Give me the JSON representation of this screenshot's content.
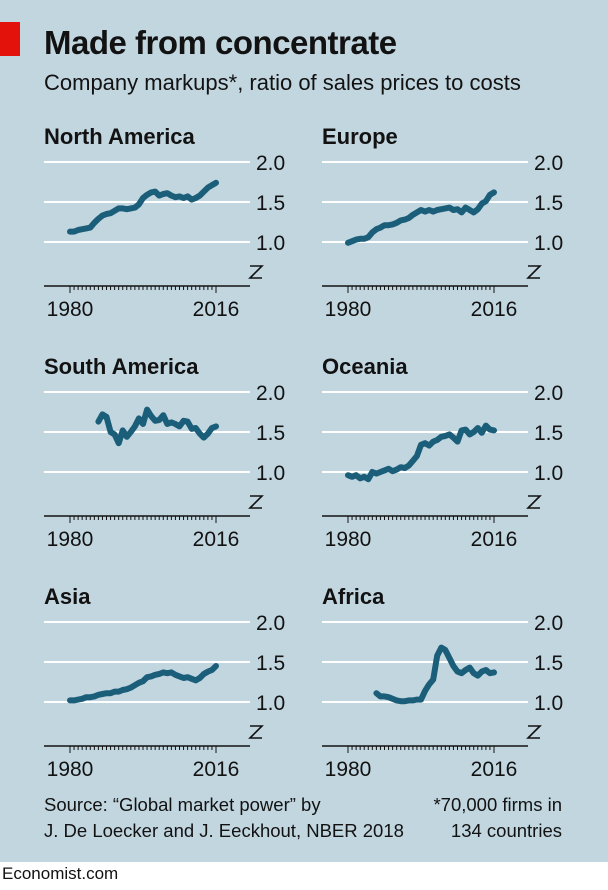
{
  "header": {
    "title": "Made from concentrate",
    "subtitle": "Company markups*, ratio of sales prices to costs"
  },
  "footer": {
    "source_line1": "Source: “Global market power” by",
    "source_line2": "J. De Loecker and J. Eeckhout, NBER 2018",
    "note_line1": "*70,000 firms in",
    "note_line2": "134 countries",
    "brand": "Economist.com"
  },
  "colors": {
    "background": "#c2d6e0",
    "line": "#1b5e7a",
    "gridline": "#ffffff",
    "accent": "#e3120b"
  },
  "chart_data": [
    {
      "type": "line",
      "title": "North America",
      "xlim": [
        1980,
        2016
      ],
      "ylim": [
        1.0,
        2.0
      ],
      "yticks": [
        1.0,
        1.5,
        2.0
      ],
      "ytick_labels": [
        "1.0",
        "1.5",
        "2.0"
      ],
      "xtick_labels": [
        "1980",
        "2016"
      ],
      "axis_break": true,
      "x": [
        1980,
        1981,
        1982,
        1983,
        1984,
        1985,
        1986,
        1987,
        1988,
        1989,
        1990,
        1991,
        1992,
        1993,
        1994,
        1995,
        1996,
        1997,
        1998,
        1999,
        2000,
        2001,
        2002,
        2003,
        2004,
        2005,
        2006,
        2007,
        2008,
        2009,
        2010,
        2011,
        2012,
        2013,
        2014,
        2015,
        2016
      ],
      "y": [
        1.13,
        1.13,
        1.15,
        1.16,
        1.17,
        1.18,
        1.24,
        1.29,
        1.33,
        1.35,
        1.36,
        1.39,
        1.42,
        1.42,
        1.41,
        1.42,
        1.43,
        1.47,
        1.55,
        1.59,
        1.62,
        1.63,
        1.58,
        1.6,
        1.61,
        1.58,
        1.56,
        1.57,
        1.55,
        1.57,
        1.53,
        1.55,
        1.58,
        1.63,
        1.68,
        1.71,
        1.74
      ]
    },
    {
      "type": "line",
      "title": "Europe",
      "xlim": [
        1980,
        2016
      ],
      "ylim": [
        1.0,
        2.0
      ],
      "yticks": [
        1.0,
        1.5,
        2.0
      ],
      "ytick_labels": [
        "1.0",
        "1.5",
        "2.0"
      ],
      "xtick_labels": [
        "1980",
        "2016"
      ],
      "axis_break": true,
      "x": [
        1980,
        1981,
        1982,
        1983,
        1984,
        1985,
        1986,
        1987,
        1988,
        1989,
        1990,
        1991,
        1992,
        1993,
        1994,
        1995,
        1996,
        1997,
        1998,
        1999,
        2000,
        2001,
        2002,
        2003,
        2004,
        2005,
        2006,
        2007,
        2008,
        2009,
        2010,
        2011,
        2012,
        2013,
        2014,
        2015,
        2016
      ],
      "y": [
        0.99,
        1.01,
        1.03,
        1.04,
        1.04,
        1.06,
        1.12,
        1.16,
        1.18,
        1.21,
        1.21,
        1.22,
        1.24,
        1.27,
        1.28,
        1.3,
        1.34,
        1.37,
        1.4,
        1.38,
        1.4,
        1.38,
        1.4,
        1.41,
        1.42,
        1.43,
        1.4,
        1.41,
        1.37,
        1.43,
        1.4,
        1.37,
        1.41,
        1.48,
        1.51,
        1.59,
        1.62
      ]
    },
    {
      "type": "line",
      "title": "South America",
      "xlim": [
        1980,
        2016
      ],
      "ylim": [
        1.0,
        2.0
      ],
      "yticks": [
        1.0,
        1.5,
        2.0
      ],
      "ytick_labels": [
        "1.0",
        "1.5",
        "2.0"
      ],
      "xtick_labels": [
        "1980",
        "2016"
      ],
      "axis_break": true,
      "x": [
        1987,
        1988,
        1989,
        1990,
        1991,
        1992,
        1993,
        1994,
        1995,
        1996,
        1997,
        1998,
        1999,
        2000,
        2001,
        2002,
        2003,
        2004,
        2005,
        2006,
        2007,
        2008,
        2009,
        2010,
        2011,
        2012,
        2013,
        2014,
        2015,
        2016
      ],
      "y": [
        1.63,
        1.72,
        1.69,
        1.5,
        1.47,
        1.36,
        1.52,
        1.44,
        1.5,
        1.57,
        1.67,
        1.6,
        1.78,
        1.7,
        1.64,
        1.65,
        1.71,
        1.6,
        1.62,
        1.6,
        1.57,
        1.64,
        1.63,
        1.54,
        1.55,
        1.48,
        1.43,
        1.48,
        1.55,
        1.57
      ]
    },
    {
      "type": "line",
      "title": "Oceania",
      "xlim": [
        1980,
        2016
      ],
      "ylim": [
        1.0,
        2.0
      ],
      "yticks": [
        1.0,
        1.5,
        2.0
      ],
      "ytick_labels": [
        "1.0",
        "1.5",
        "2.0"
      ],
      "xtick_labels": [
        "1980",
        "2016"
      ],
      "axis_break": true,
      "x": [
        1980,
        1981,
        1982,
        1983,
        1984,
        1985,
        1986,
        1987,
        1988,
        1989,
        1990,
        1991,
        1992,
        1993,
        1994,
        1995,
        1996,
        1997,
        1998,
        1999,
        2000,
        2001,
        2002,
        2003,
        2004,
        2005,
        2006,
        2007,
        2008,
        2009,
        2010,
        2011,
        2012,
        2013,
        2014,
        2015,
        2016
      ],
      "y": [
        0.96,
        0.94,
        0.96,
        0.92,
        0.94,
        0.91,
        1.0,
        0.98,
        1.0,
        1.02,
        1.04,
        1.01,
        1.03,
        1.06,
        1.05,
        1.08,
        1.14,
        1.2,
        1.34,
        1.36,
        1.33,
        1.38,
        1.4,
        1.44,
        1.45,
        1.47,
        1.43,
        1.38,
        1.52,
        1.53,
        1.47,
        1.5,
        1.55,
        1.49,
        1.58,
        1.53,
        1.52
      ]
    },
    {
      "type": "line",
      "title": "Asia",
      "xlim": [
        1980,
        2016
      ],
      "ylim": [
        1.0,
        2.0
      ],
      "yticks": [
        1.0,
        1.5,
        2.0
      ],
      "ytick_labels": [
        "1.0",
        "1.5",
        "2.0"
      ],
      "xtick_labels": [
        "1980",
        "2016"
      ],
      "axis_break": true,
      "x": [
        1980,
        1981,
        1982,
        1983,
        1984,
        1985,
        1986,
        1987,
        1988,
        1989,
        1990,
        1991,
        1992,
        1993,
        1994,
        1995,
        1996,
        1997,
        1998,
        1999,
        2000,
        2001,
        2002,
        2003,
        2004,
        2005,
        2006,
        2007,
        2008,
        2009,
        2010,
        2011,
        2012,
        2013,
        2014,
        2015,
        2016
      ],
      "y": [
        1.02,
        1.02,
        1.03,
        1.04,
        1.06,
        1.06,
        1.07,
        1.09,
        1.1,
        1.11,
        1.11,
        1.13,
        1.13,
        1.15,
        1.16,
        1.18,
        1.21,
        1.24,
        1.26,
        1.31,
        1.32,
        1.34,
        1.35,
        1.37,
        1.36,
        1.37,
        1.34,
        1.32,
        1.3,
        1.31,
        1.29,
        1.27,
        1.3,
        1.35,
        1.38,
        1.4,
        1.45
      ]
    },
    {
      "type": "line",
      "title": "Africa",
      "xlim": [
        1980,
        2016
      ],
      "ylim": [
        1.0,
        2.0
      ],
      "yticks": [
        1.0,
        1.5,
        2.0
      ],
      "ytick_labels": [
        "1.0",
        "1.5",
        "2.0"
      ],
      "xtick_labels": [
        "1980",
        "2016"
      ],
      "axis_break": true,
      "x": [
        1987,
        1988,
        1989,
        1990,
        1991,
        1992,
        1993,
        1994,
        1995,
        1996,
        1997,
        1998,
        1999,
        2000,
        2001,
        2002,
        2003,
        2004,
        2005,
        2006,
        2007,
        2008,
        2009,
        2010,
        2011,
        2012,
        2013,
        2014,
        2015,
        2016
      ],
      "y": [
        1.11,
        1.07,
        1.07,
        1.06,
        1.04,
        1.02,
        1.01,
        1.01,
        1.02,
        1.02,
        1.03,
        1.03,
        1.14,
        1.22,
        1.28,
        1.58,
        1.68,
        1.65,
        1.55,
        1.45,
        1.38,
        1.36,
        1.4,
        1.43,
        1.36,
        1.33,
        1.38,
        1.4,
        1.36,
        1.37
      ]
    }
  ]
}
